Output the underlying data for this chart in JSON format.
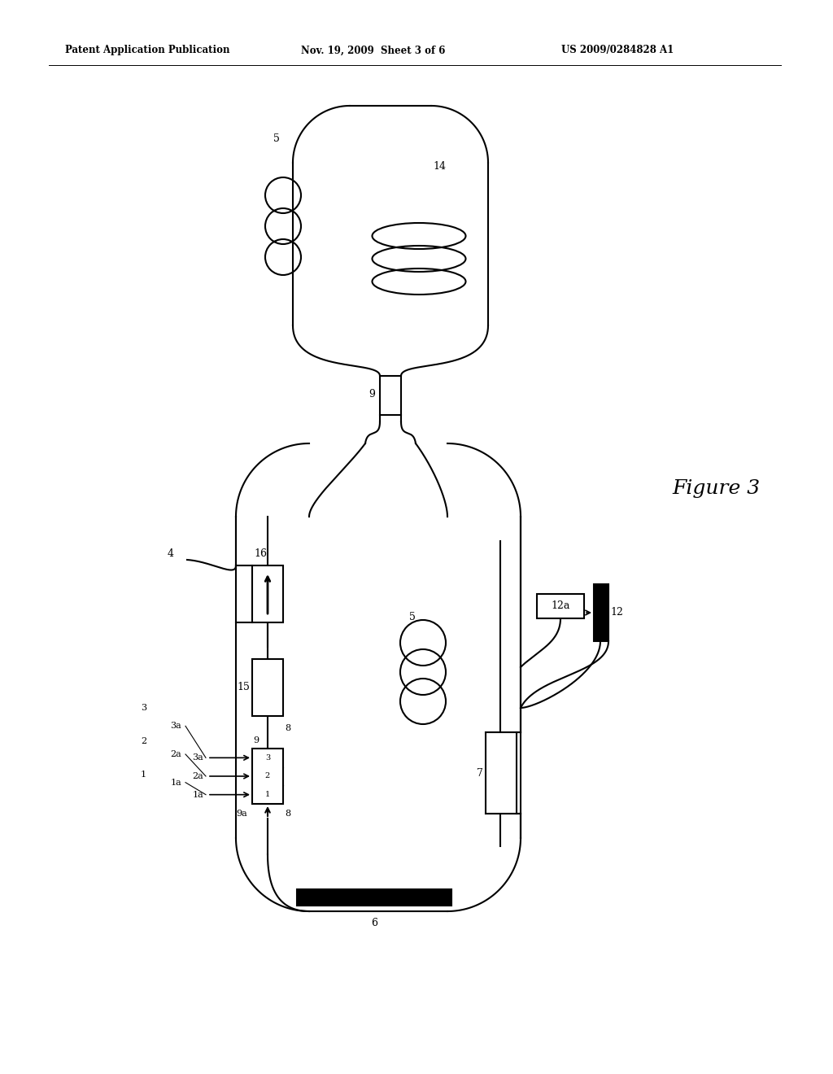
{
  "bg_color": "#ffffff",
  "header_left": "Patent Application Publication",
  "header_mid": "Nov. 19, 2009  Sheet 3 of 6",
  "header_right": "US 2009/0284828 A1",
  "figure_label": "Figure 3",
  "fig_width": 10.24,
  "fig_height": 13.2
}
